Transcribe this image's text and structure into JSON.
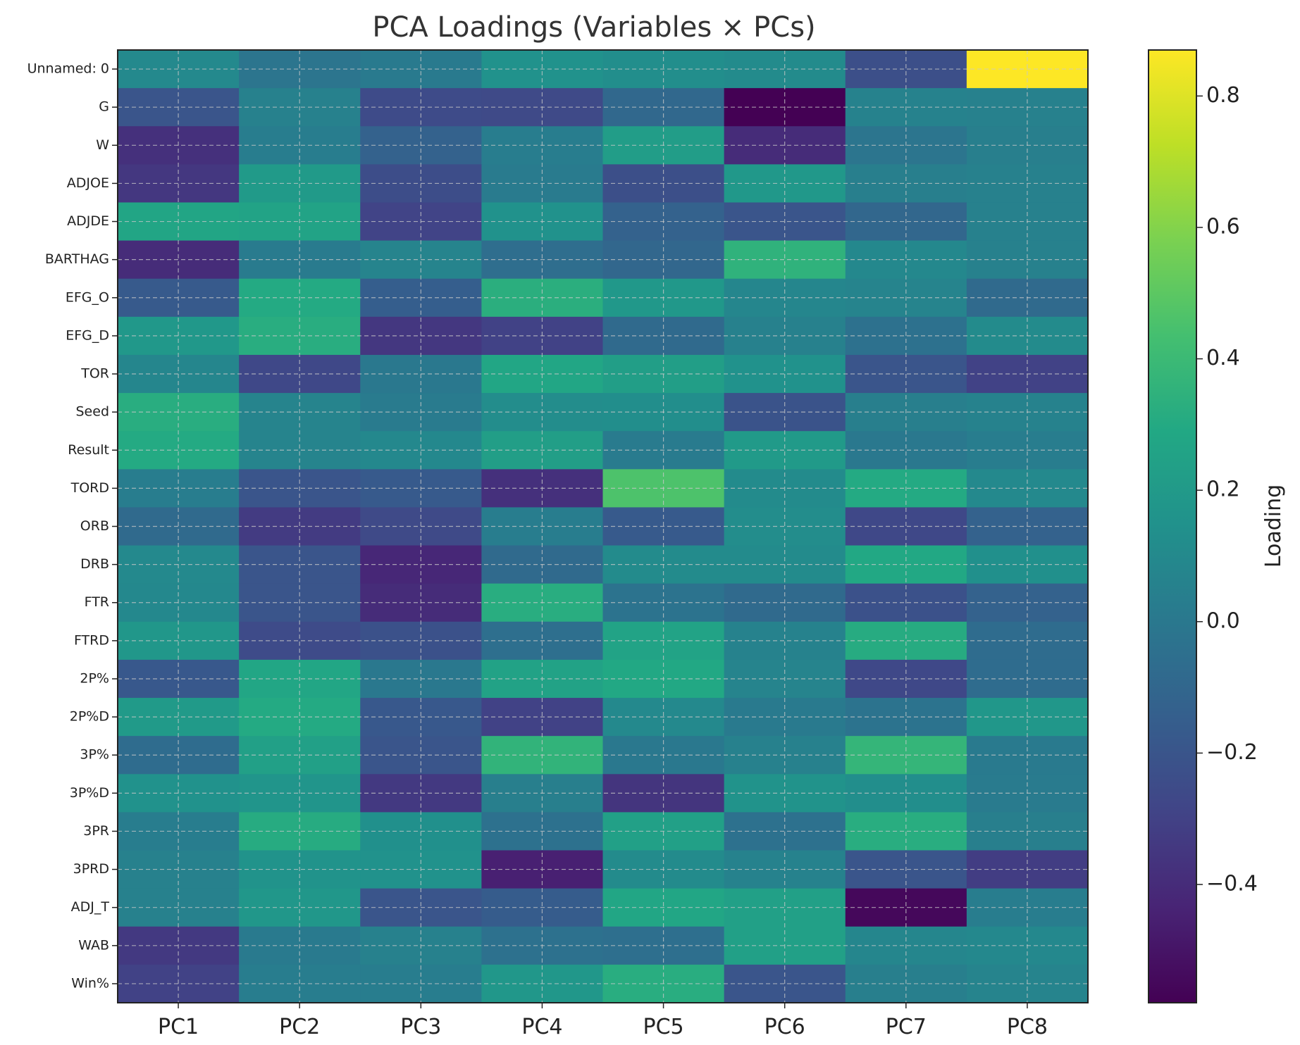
{
  "chart_data": {
    "type": "heatmap",
    "title": "PCA Loadings (Variables × PCs)",
    "xlabel": "",
    "ylabel": "",
    "colorbar_label": "Loading",
    "colormap": "viridis",
    "vmin": -0.58,
    "vmax": 0.87,
    "colorbar_ticks": [
      0.8,
      0.6,
      0.4,
      0.2,
      0.0,
      -0.2,
      -0.4
    ],
    "colorbar_tick_labels": [
      "0.8",
      "0.6",
      "0.4",
      "0.2",
      "0.0",
      "−0.2",
      "−0.4"
    ],
    "grid": true,
    "columns": [
      "PC1",
      "PC2",
      "PC3",
      "PC4",
      "PC5",
      "PC6",
      "PC7",
      "PC8"
    ],
    "rows": [
      "Unnamed: 0",
      "G",
      "W",
      "ADJOE",
      "ADJDE",
      "BARTHAG",
      "EFG_O",
      "EFG_D",
      "TOR",
      "Seed",
      "Result",
      "TORD",
      "ORB",
      "DRB",
      "FTR",
      "FTRD",
      "2P%",
      "2P%D",
      "3P%",
      "3P%D",
      "3PR",
      "3PRD",
      "ADJ_T",
      "WAB",
      "Win%"
    ],
    "values": [
      [
        0.1,
        -0.02,
        0.01,
        0.15,
        0.13,
        0.11,
        -0.23,
        0.87
      ],
      [
        -0.2,
        0.05,
        -0.25,
        -0.26,
        -0.09,
        -0.58,
        0.06,
        0.05
      ],
      [
        -0.38,
        0.03,
        -0.13,
        0.03,
        0.22,
        -0.4,
        -0.02,
        0.04
      ],
      [
        -0.35,
        0.2,
        -0.24,
        0.02,
        -0.23,
        0.19,
        0.04,
        0.05
      ],
      [
        0.27,
        0.26,
        -0.29,
        0.15,
        -0.13,
        -0.2,
        -0.1,
        0.05
      ],
      [
        -0.4,
        0.02,
        0.07,
        -0.06,
        -0.1,
        0.35,
        0.09,
        0.05
      ],
      [
        -0.17,
        0.3,
        -0.15,
        0.33,
        0.19,
        0.08,
        0.07,
        -0.08
      ],
      [
        0.19,
        0.32,
        -0.35,
        -0.3,
        -0.08,
        0.05,
        -0.04,
        0.11
      ],
      [
        0.08,
        -0.27,
        0.0,
        0.28,
        0.23,
        0.15,
        -0.2,
        -0.3
      ],
      [
        0.32,
        0.07,
        0.02,
        0.12,
        0.13,
        -0.21,
        0.04,
        0.06
      ],
      [
        0.3,
        0.07,
        0.09,
        0.23,
        0.02,
        0.2,
        0.0,
        0.03
      ],
      [
        0.03,
        -0.2,
        -0.17,
        -0.38,
        0.46,
        0.11,
        0.3,
        0.1
      ],
      [
        -0.08,
        -0.33,
        -0.26,
        0.03,
        -0.17,
        0.12,
        -0.27,
        -0.13
      ],
      [
        0.1,
        -0.2,
        -0.42,
        -0.08,
        0.11,
        0.11,
        0.29,
        0.14
      ],
      [
        0.09,
        -0.2,
        -0.4,
        0.32,
        -0.03,
        -0.08,
        -0.22,
        -0.13
      ],
      [
        0.18,
        -0.25,
        -0.22,
        -0.05,
        0.26,
        0.06,
        0.31,
        -0.07
      ],
      [
        -0.18,
        0.28,
        0.0,
        0.25,
        0.29,
        0.07,
        -0.27,
        -0.07
      ],
      [
        0.2,
        0.3,
        -0.18,
        -0.3,
        0.1,
        0.01,
        -0.03,
        0.18
      ],
      [
        -0.07,
        0.24,
        -0.2,
        0.36,
        0.0,
        0.05,
        0.37,
        0.01
      ],
      [
        0.15,
        0.17,
        -0.34,
        0.04,
        -0.36,
        0.16,
        0.13,
        0.02
      ],
      [
        0.03,
        0.31,
        0.14,
        -0.04,
        0.24,
        -0.04,
        0.32,
        0.04
      ],
      [
        0.05,
        0.16,
        0.15,
        -0.45,
        0.11,
        0.06,
        -0.2,
        -0.32
      ],
      [
        0.05,
        0.18,
        -0.2,
        -0.16,
        0.28,
        0.24,
        -0.55,
        0.03
      ],
      [
        -0.34,
        0.01,
        0.05,
        -0.04,
        -0.05,
        0.24,
        0.08,
        0.09
      ],
      [
        -0.3,
        0.03,
        0.03,
        0.18,
        0.32,
        -0.2,
        0.04,
        0.07
      ]
    ]
  }
}
